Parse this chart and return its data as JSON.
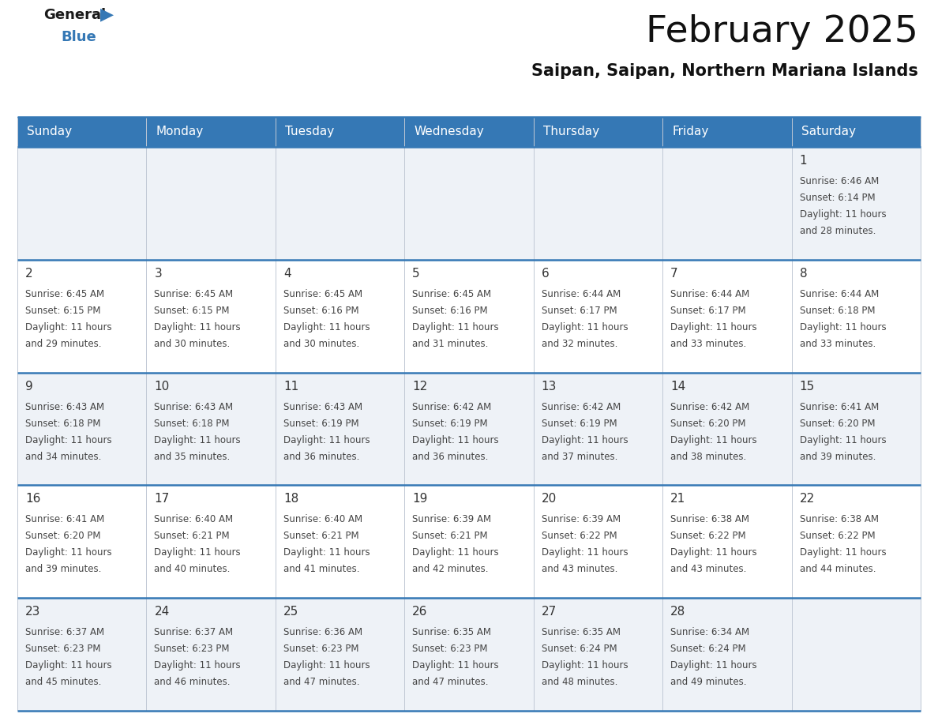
{
  "title": "February 2025",
  "subtitle": "Saipan, Saipan, Northern Mariana Islands",
  "days_of_week": [
    "Sunday",
    "Monday",
    "Tuesday",
    "Wednesday",
    "Thursday",
    "Friday",
    "Saturday"
  ],
  "header_bg": "#3578b5",
  "header_text": "#ffffff",
  "cell_bg_light": "#eef2f7",
  "cell_bg_white": "#ffffff",
  "day_num_color": "#333333",
  "info_text_color": "#444444",
  "separator_color": "#3578b5",
  "title_color": "#111111",
  "subtitle_color": "#111111",
  "calendar": [
    [
      null,
      null,
      null,
      null,
      null,
      null,
      {
        "day": "1",
        "sunrise": "6:46 AM",
        "sunset": "6:14 PM",
        "daylight": "11 hours\nand 28 minutes."
      }
    ],
    [
      {
        "day": "2",
        "sunrise": "6:45 AM",
        "sunset": "6:15 PM",
        "daylight": "11 hours\nand 29 minutes."
      },
      {
        "day": "3",
        "sunrise": "6:45 AM",
        "sunset": "6:15 PM",
        "daylight": "11 hours\nand 30 minutes."
      },
      {
        "day": "4",
        "sunrise": "6:45 AM",
        "sunset": "6:16 PM",
        "daylight": "11 hours\nand 30 minutes."
      },
      {
        "day": "5",
        "sunrise": "6:45 AM",
        "sunset": "6:16 PM",
        "daylight": "11 hours\nand 31 minutes."
      },
      {
        "day": "6",
        "sunrise": "6:44 AM",
        "sunset": "6:17 PM",
        "daylight": "11 hours\nand 32 minutes."
      },
      {
        "day": "7",
        "sunrise": "6:44 AM",
        "sunset": "6:17 PM",
        "daylight": "11 hours\nand 33 minutes."
      },
      {
        "day": "8",
        "sunrise": "6:44 AM",
        "sunset": "6:18 PM",
        "daylight": "11 hours\nand 33 minutes."
      }
    ],
    [
      {
        "day": "9",
        "sunrise": "6:43 AM",
        "sunset": "6:18 PM",
        "daylight": "11 hours\nand 34 minutes."
      },
      {
        "day": "10",
        "sunrise": "6:43 AM",
        "sunset": "6:18 PM",
        "daylight": "11 hours\nand 35 minutes."
      },
      {
        "day": "11",
        "sunrise": "6:43 AM",
        "sunset": "6:19 PM",
        "daylight": "11 hours\nand 36 minutes."
      },
      {
        "day": "12",
        "sunrise": "6:42 AM",
        "sunset": "6:19 PM",
        "daylight": "11 hours\nand 36 minutes."
      },
      {
        "day": "13",
        "sunrise": "6:42 AM",
        "sunset": "6:19 PM",
        "daylight": "11 hours\nand 37 minutes."
      },
      {
        "day": "14",
        "sunrise": "6:42 AM",
        "sunset": "6:20 PM",
        "daylight": "11 hours\nand 38 minutes."
      },
      {
        "day": "15",
        "sunrise": "6:41 AM",
        "sunset": "6:20 PM",
        "daylight": "11 hours\nand 39 minutes."
      }
    ],
    [
      {
        "day": "16",
        "sunrise": "6:41 AM",
        "sunset": "6:20 PM",
        "daylight": "11 hours\nand 39 minutes."
      },
      {
        "day": "17",
        "sunrise": "6:40 AM",
        "sunset": "6:21 PM",
        "daylight": "11 hours\nand 40 minutes."
      },
      {
        "day": "18",
        "sunrise": "6:40 AM",
        "sunset": "6:21 PM",
        "daylight": "11 hours\nand 41 minutes."
      },
      {
        "day": "19",
        "sunrise": "6:39 AM",
        "sunset": "6:21 PM",
        "daylight": "11 hours\nand 42 minutes."
      },
      {
        "day": "20",
        "sunrise": "6:39 AM",
        "sunset": "6:22 PM",
        "daylight": "11 hours\nand 43 minutes."
      },
      {
        "day": "21",
        "sunrise": "6:38 AM",
        "sunset": "6:22 PM",
        "daylight": "11 hours\nand 43 minutes."
      },
      {
        "day": "22",
        "sunrise": "6:38 AM",
        "sunset": "6:22 PM",
        "daylight": "11 hours\nand 44 minutes."
      }
    ],
    [
      {
        "day": "23",
        "sunrise": "6:37 AM",
        "sunset": "6:23 PM",
        "daylight": "11 hours\nand 45 minutes."
      },
      {
        "day": "24",
        "sunrise": "6:37 AM",
        "sunset": "6:23 PM",
        "daylight": "11 hours\nand 46 minutes."
      },
      {
        "day": "25",
        "sunrise": "6:36 AM",
        "sunset": "6:23 PM",
        "daylight": "11 hours\nand 47 minutes."
      },
      {
        "day": "26",
        "sunrise": "6:35 AM",
        "sunset": "6:23 PM",
        "daylight": "11 hours\nand 47 minutes."
      },
      {
        "day": "27",
        "sunrise": "6:35 AM",
        "sunset": "6:24 PM",
        "daylight": "11 hours\nand 48 minutes."
      },
      {
        "day": "28",
        "sunrise": "6:34 AM",
        "sunset": "6:24 PM",
        "daylight": "11 hours\nand 49 minutes."
      },
      null
    ]
  ]
}
